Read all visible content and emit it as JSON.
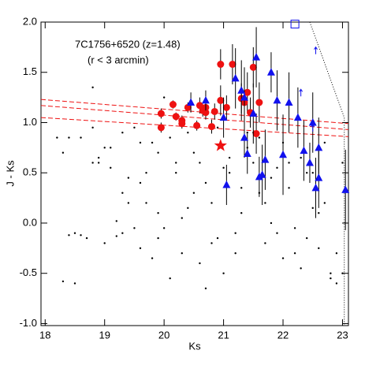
{
  "chart_data": {
    "type": "scatter",
    "annotations": [
      "7C1756+6520 (z=1.48)",
      "(r < 3 arcmin)"
    ],
    "x_label": "Ks",
    "y_label": "J - Ks",
    "xlim": [
      17.93,
      23.1
    ],
    "ylim": [
      -1.02,
      2.0
    ],
    "xticks": [
      18,
      19,
      20,
      21,
      22,
      23
    ],
    "yticks": [
      {
        "value": -1.0,
        "label": "-1.0"
      },
      {
        "value": -0.5,
        "label": "-0.5"
      },
      {
        "value": 0.0,
        "label": "0.0"
      },
      {
        "value": 0.5,
        "label": "0.5"
      },
      {
        "value": 1.0,
        "label": "1.0"
      },
      {
        "value": 1.5,
        "label": "1.5"
      },
      {
        "value": 2.0,
        "label": "2.0"
      }
    ],
    "series": [
      {
        "color": "#000000",
        "marker": "dot",
        "x": [
          18.2,
          18.3,
          18.4,
          18.5,
          18.6,
          18.8,
          18.9,
          19.0,
          19.1,
          19.2,
          19.3,
          19.4,
          19.5,
          19.6,
          19.7,
          19.8,
          19.9,
          20.0,
          18.8,
          18.7,
          19.0,
          19.3,
          19.5,
          19.7,
          19.9,
          20.1,
          20.3,
          20.5,
          20.7,
          20.9,
          21.1,
          21.3,
          21.5,
          21.7,
          21.9,
          22.1,
          22.3,
          22.5,
          22.7,
          22.9,
          18.3,
          18.5,
          18.9,
          19.2,
          19.4,
          19.6,
          19.8,
          20.0,
          20.2,
          20.4,
          20.6,
          20.8,
          21.0,
          21.2,
          21.4,
          21.6,
          21.8,
          22.0,
          22.2,
          22.4,
          22.6,
          22.8,
          23.0,
          18.4,
          18.6,
          19.1,
          19.3,
          19.6,
          19.9,
          20.2,
          20.5,
          20.8,
          21.1,
          21.4,
          21.7,
          22.0,
          22.3,
          22.6,
          22.9,
          20.1,
          20.4,
          20.7,
          21.0,
          21.3,
          21.6,
          21.9,
          22.2,
          22.5,
          22.8,
          20.3,
          20.6,
          20.9,
          21.2,
          21.5,
          21.8,
          22.1,
          22.4,
          22.7,
          23.0,
          18.8
        ],
        "y": [
          0.85,
          0.7,
          -0.12,
          -0.6,
          0.85,
          1.35,
          0.6,
          0.75,
          0.55,
          -0.13,
          0.9,
          0.45,
          -0.05,
          0.8,
          0.2,
          -0.35,
          0.7,
          1.25,
          0.6,
          -0.15,
          -0.2,
          0.3,
          0.95,
          0.5,
          0.1,
          0.85,
          -0.3,
          0.7,
          0.4,
          -0.15,
          0.65,
          0.1,
          0.9,
          -0.2,
          0.55,
          0.35,
          -0.45,
          0.15,
          0.8,
          -0.6,
          -0.58,
          -0.1,
          0.65,
          0.02,
          0.2,
          -0.25,
          0.8,
          -0.05,
          0.5,
          0.9,
          -0.4,
          0.2,
          0.55,
          -0.1,
          0.75,
          0.3,
          0.0,
          0.8,
          -0.3,
          0.5,
          0.1,
          -0.5,
          0.6,
          0.85,
          -0.12,
          0.75,
          -0.1,
          0.4,
          -0.15,
          0.6,
          0.3,
          -0.2,
          0.5,
          0.9,
          0.2,
          -0.35,
          0.65,
          -0.25,
          -0.3,
          -0.55,
          0.15,
          -0.65,
          -0.5,
          0.35,
          0.85,
          -0.1,
          -0.05,
          0.5,
          -0.55,
          0.05,
          0.6,
          0.95,
          -0.3,
          0.6,
          0.45,
          0.6,
          -0.15,
          0.2,
          -0.5,
          0.95
        ]
      },
      {
        "color": "#ee1111",
        "marker": "circle",
        "x": [
          19.95,
          19.95,
          20.15,
          20.2,
          20.3,
          20.3,
          20.4,
          20.55,
          20.6,
          20.65,
          20.7,
          20.7,
          20.85,
          20.8,
          20.95,
          20.95,
          21.05,
          21.15,
          21.3,
          21.35,
          21.4,
          21.45,
          21.5,
          21.55,
          21.6
        ],
        "y": [
          1.09,
          0.95,
          1.18,
          1.06,
          1.02,
          0.99,
          1.15,
          0.97,
          1.17,
          1.12,
          1.15,
          1.1,
          1.11,
          0.96,
          1.58,
          1.22,
          1.15,
          1.58,
          1.24,
          1.2,
          1.3,
          1.1,
          1.55,
          0.89,
          1.2
        ],
        "yerr": [
          0.05,
          0.05,
          0.04,
          0.04,
          0.05,
          0.05,
          0.05,
          0.05,
          0.08,
          0.06,
          0.06,
          0.07,
          0.08,
          0.07,
          0.15,
          0.15,
          0.12,
          0.2,
          0.15,
          0.15,
          0.2,
          0.15,
          0.2,
          0.2,
          0.2
        ]
      },
      {
        "color": "#1111ee",
        "marker": "triangle",
        "x": [
          20.45,
          20.7,
          21.0,
          21.05,
          21.2,
          21.3,
          21.35,
          21.35,
          21.4,
          21.5,
          21.55,
          21.6,
          21.65,
          21.7,
          21.8,
          21.9,
          22.0,
          22.1,
          22.25,
          22.35,
          22.45,
          22.5,
          22.55,
          22.6,
          22.6,
          23.05
        ],
        "y": [
          1.2,
          1.22,
          1.05,
          0.38,
          1.44,
          1.32,
          1.25,
          0.85,
          0.69,
          1.09,
          1.65,
          0.46,
          0.48,
          0.63,
          1.5,
          1.22,
          0.68,
          1.2,
          1.05,
          0.72,
          0.6,
          1.0,
          0.35,
          0.75,
          0.45,
          0.33
        ],
        "yerr": [
          0.1,
          0.1,
          0.2,
          0.2,
          0.3,
          0.3,
          0.3,
          0.2,
          0.2,
          0.3,
          0.3,
          0.2,
          0.3,
          0.3,
          0.2,
          0.3,
          0.4,
          0.3,
          0.3,
          0.3,
          0.2,
          0.3,
          0.3,
          0.3,
          0.3,
          0.4
        ]
      },
      {
        "color": "#ee1111",
        "marker": "star",
        "x": [
          20.95
        ],
        "y": [
          0.77
        ]
      },
      {
        "color": "#1111ee",
        "marker": "square",
        "x": [
          22.2
        ],
        "y": [
          1.98
        ]
      },
      {
        "color": "#1111ee",
        "marker": "arrow",
        "x": [
          22.3,
          22.5,
          22.55
        ],
        "y": [
          1.3,
          0.95,
          1.72
        ]
      }
    ],
    "reference_lines": [
      {
        "color": "#ee1111",
        "style": "dashed",
        "x": [
          17.93,
          23.1
        ],
        "y": [
          1.23,
          0.99
        ]
      },
      {
        "color": "#ee1111",
        "style": "dashed",
        "x": [
          17.93,
          23.1
        ],
        "y": [
          1.17,
          0.93
        ]
      },
      {
        "color": "#ee1111",
        "style": "dashed",
        "x": [
          17.93,
          23.1
        ],
        "y": [
          1.05,
          0.86
        ]
      },
      {
        "color": "#000000",
        "style": "dotted",
        "x": [
          22.45,
          23.03,
          23.03
        ],
        "y": [
          2.0,
          1.05,
          -1.02
        ]
      }
    ]
  }
}
